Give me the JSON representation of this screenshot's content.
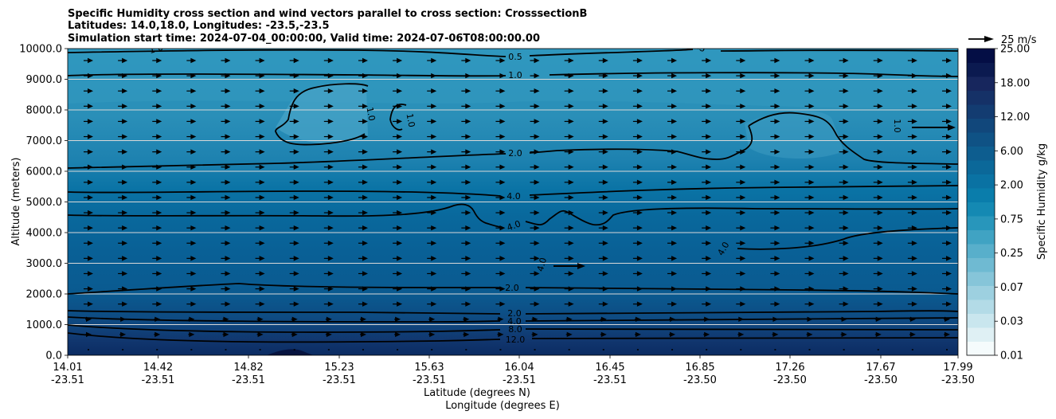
{
  "chart_data": {
    "type": "contour",
    "title_lines": [
      "Specific Humidity cross section and wind vectors parallel to cross section: CrosssectionB",
      "Latitudes: 14.0,18.0, Longitudes: -23.5,-23.5",
      "Simulation start time: 2024-07-04_00:00:00, Valid time: 2024-07-06T08:00:00.00"
    ],
    "xlabel": "Latitude (degrees N)",
    "xlabel2": "Longitude (degrees E)",
    "ylabel": "Altitude (meters)",
    "ylim": [
      0,
      10000
    ],
    "x_ticks": [
      {
        "lat": "14.01",
        "lon": "-23.51"
      },
      {
        "lat": "14.42",
        "lon": "-23.51"
      },
      {
        "lat": "14.82",
        "lon": "-23.51"
      },
      {
        "lat": "15.23",
        "lon": "-23.51"
      },
      {
        "lat": "15.63",
        "lon": "-23.51"
      },
      {
        "lat": "16.04",
        "lon": "-23.51"
      },
      {
        "lat": "16.45",
        "lon": "-23.51"
      },
      {
        "lat": "16.85",
        "lon": "-23.50"
      },
      {
        "lat": "17.26",
        "lon": "-23.50"
      },
      {
        "lat": "17.67",
        "lon": "-23.50"
      },
      {
        "lat": "17.99",
        "lon": "-23.50"
      }
    ],
    "y_ticks": [
      "0.0",
      "1000.0",
      "2000.0",
      "3000.0",
      "4000.0",
      "5000.0",
      "6000.0",
      "7000.0",
      "8000.0",
      "9000.0",
      "10000.0"
    ],
    "colorbar": {
      "label": "Specific Humidity g/kg",
      "tick_labels": [
        "0.01",
        "0.03",
        "0.07",
        "0.25",
        "0.75",
        "2.00",
        "6.00",
        "12.00",
        "18.00",
        "25.00"
      ],
      "colors": [
        "#f5fbfc",
        "#dff0f4",
        "#c9e6ee",
        "#b3dbe7",
        "#9dd0e0",
        "#86c5d9",
        "#6fbad2",
        "#58afcb",
        "#40a3c3",
        "#2896bb",
        "#1489b3",
        "#0a7dab",
        "#0a72a3",
        "#0b6899",
        "#0d5d8f",
        "#0f5285",
        "#11477b",
        "#133c71",
        "#153167",
        "#17265d",
        "#0b1a50",
        "#040e45"
      ]
    },
    "wind_reference": {
      "label": "25 m/s",
      "value": 25
    },
    "contour_labels": [
      "0.5",
      "1.0",
      "2.0",
      "4.0",
      "2.0",
      "2.0",
      "4.0",
      "8.0",
      "12.0",
      "1.0",
      "1.0",
      "1.0",
      "0.5",
      "4.0",
      "4.0",
      "4.0",
      "1.0"
    ],
    "altitude_contours": [
      {
        "level": "0.5",
        "alt_m": 9820
      },
      {
        "level": "1.0",
        "alt_m": 9120
      },
      {
        "level": "2.0",
        "alt_m": 6350
      },
      {
        "level": "4.0",
        "alt_m": 5100
      },
      {
        "level": "4.0",
        "alt_m": 4200
      },
      {
        "level": "2.0",
        "alt_m": 2150
      },
      {
        "level": "2.0",
        "alt_m": 1400
      },
      {
        "level": "4.0",
        "alt_m": 1120
      },
      {
        "level": "8.0",
        "alt_m": 900
      },
      {
        "level": "12.0",
        "alt_m": 550
      }
    ]
  }
}
